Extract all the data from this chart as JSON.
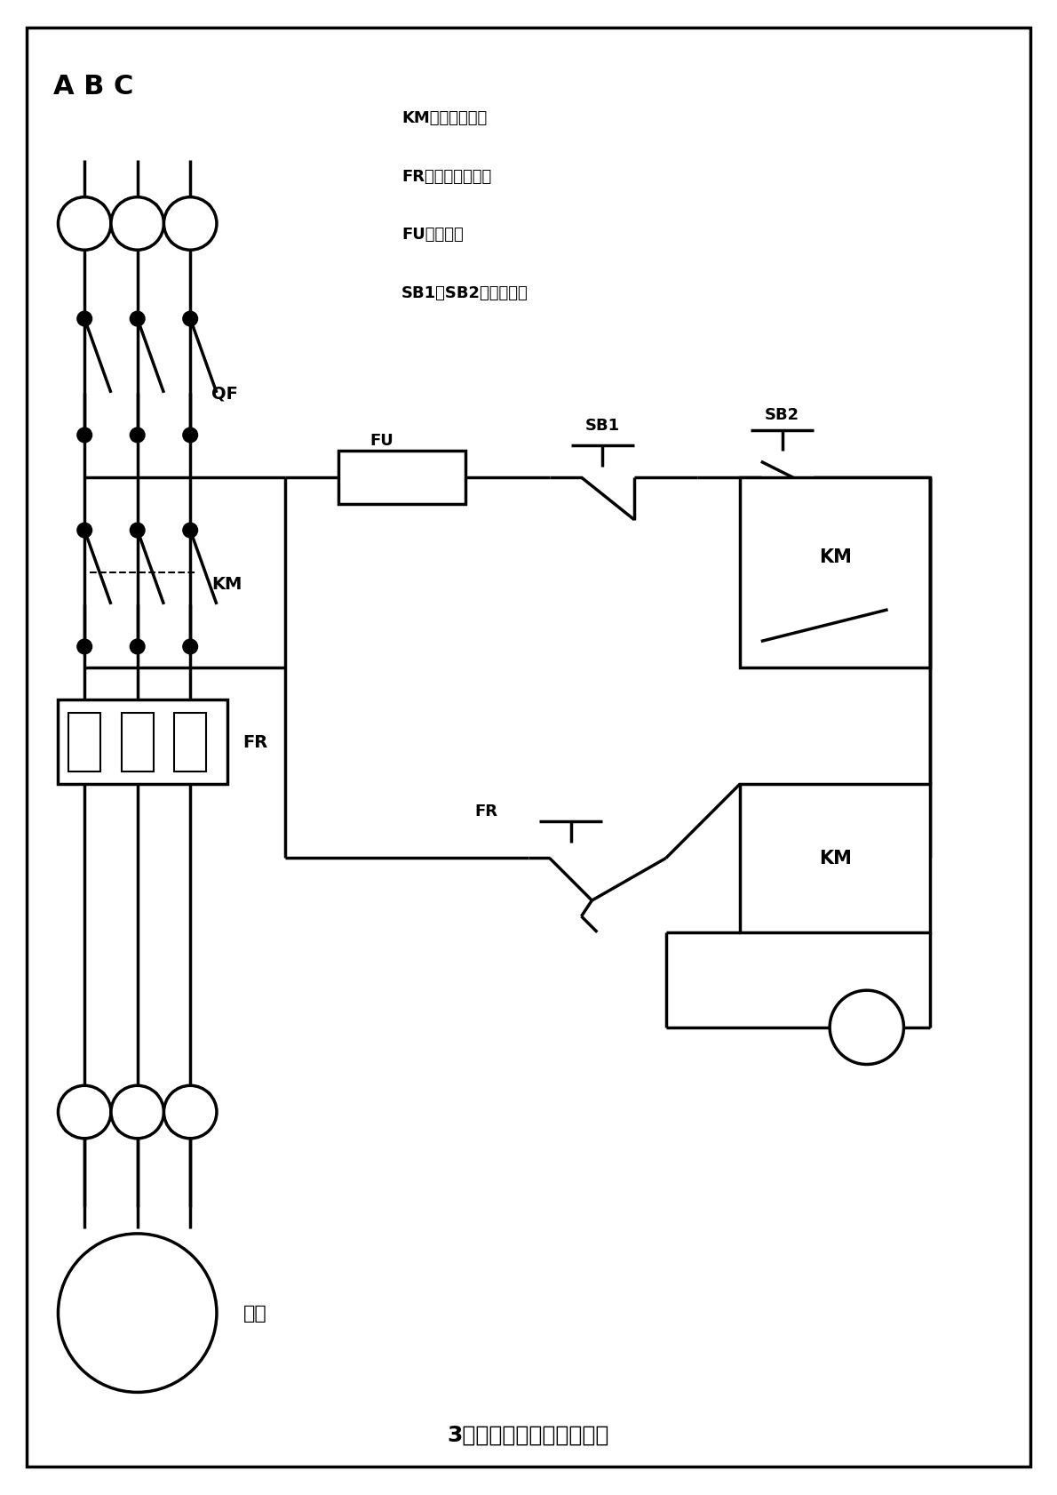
{
  "title": "3相电机启、停控制接线图",
  "bg_color": "#ffffff",
  "line_color": "#000000",
  "legend_lines": [
    "KM：交流接触器",
    "FR：热过载继电器",
    "FU：保险丝",
    "SB1、SB2：启停按钮"
  ],
  "abc_label": "A B C",
  "lw": 2.5,
  "dot_r": 0.008
}
